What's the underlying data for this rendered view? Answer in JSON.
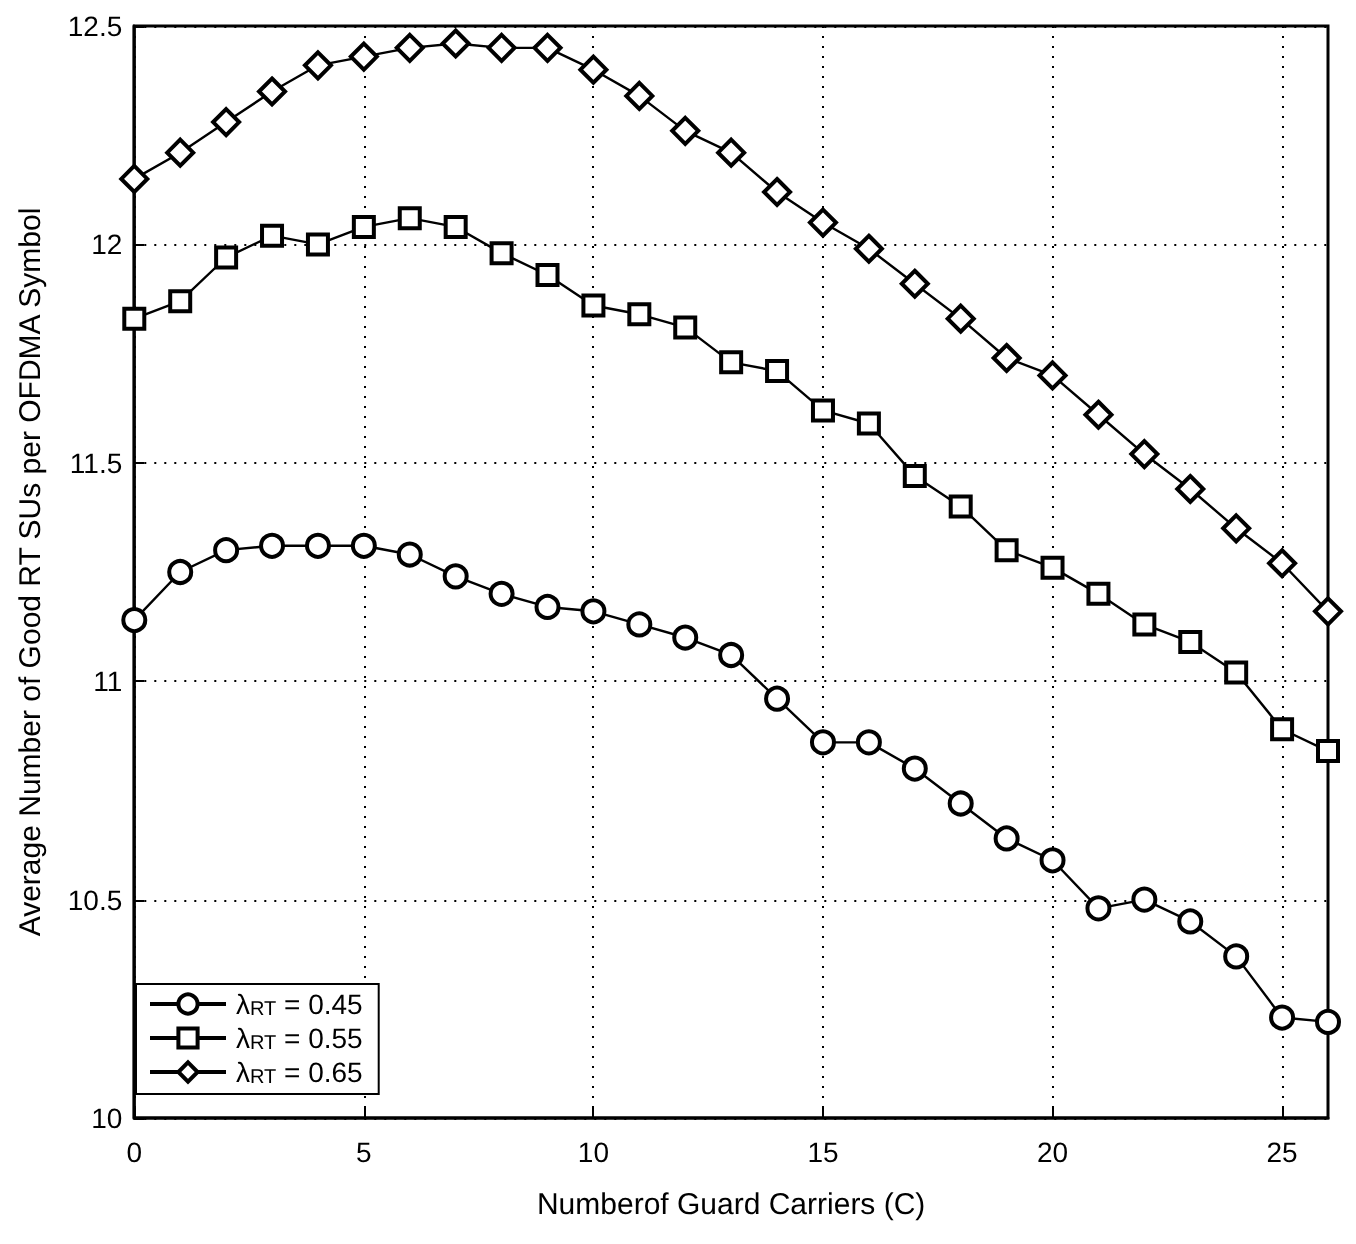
{
  "chart_data": {
    "type": "line",
    "xlabel": "Numberof Guard Carriers (C)",
    "ylabel": "Average Number of Good RT SUs per OFDMA Symbol",
    "x": [
      0,
      1,
      2,
      3,
      4,
      5,
      6,
      7,
      8,
      9,
      10,
      11,
      12,
      13,
      14,
      15,
      16,
      17,
      18,
      19,
      20,
      21,
      22,
      23,
      24,
      25,
      26
    ],
    "series": [
      {
        "name": "λ$_{RT}$ = 0.45",
        "color": "#000000",
        "marker": "circle",
        "values": [
          11.14,
          11.25,
          11.3,
          11.31,
          11.31,
          11.31,
          11.29,
          11.24,
          11.2,
          11.17,
          11.16,
          11.13,
          11.1,
          11.06,
          10.96,
          10.86,
          10.86,
          10.8,
          10.72,
          10.64,
          10.59,
          10.48,
          10.5,
          10.45,
          10.37,
          10.23,
          10.22
        ]
      },
      {
        "name": "λ$_{RT}$ = 0.55",
        "color": "#000000",
        "marker": "square",
        "values": [
          11.83,
          11.87,
          11.97,
          12.02,
          12.0,
          12.04,
          12.06,
          12.04,
          11.98,
          11.93,
          11.86,
          11.84,
          11.81,
          11.73,
          11.71,
          11.62,
          11.59,
          11.47,
          11.4,
          11.3,
          11.26,
          11.2,
          11.13,
          11.09,
          11.02,
          10.89,
          10.84
        ]
      },
      {
        "name": "λ$_{RT}$ = 0.65",
        "color": "#000000",
        "marker": "diamond",
        "values": [
          12.15,
          12.21,
          12.28,
          12.35,
          12.41,
          12.43,
          12.45,
          12.46,
          12.45,
          12.45,
          12.4,
          12.34,
          12.26,
          12.21,
          12.12,
          12.05,
          11.99,
          11.91,
          11.83,
          11.74,
          11.7,
          11.61,
          11.52,
          11.44,
          11.35,
          11.27,
          11.16
        ]
      }
    ],
    "xlim": [
      0,
      26
    ],
    "xticks": [
      0,
      5,
      10,
      15,
      20,
      25
    ],
    "ylim": [
      10,
      12.5
    ],
    "yticks": [
      10,
      10.5,
      11,
      11.5,
      12,
      12.5
    ],
    "grid": true,
    "legend": "bottom left",
    "line_style": "solid"
  }
}
